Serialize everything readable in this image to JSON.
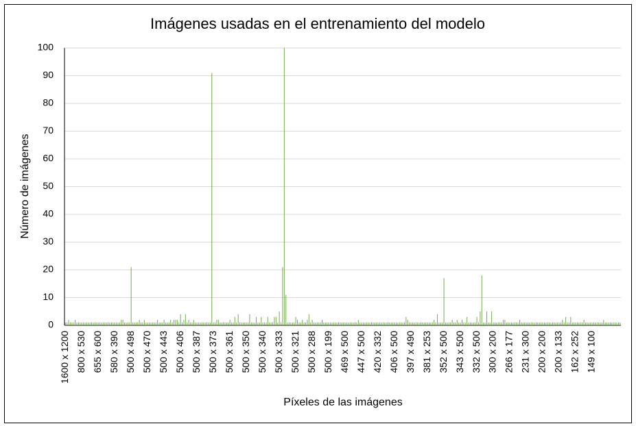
{
  "chart_data": {
    "type": "bar",
    "title": "Imágenes usadas en el entrenamiento del modelo",
    "x_label": "Píxeles de las imágenes",
    "y_label": "Número de imágenes",
    "color": "#70ad47",
    "grid": true,
    "ylim": [
      0,
      100
    ],
    "yticks": [
      0,
      10,
      20,
      30,
      40,
      50,
      60,
      70,
      80,
      90,
      100
    ],
    "categories": [
      "1600 x 1200",
      null,
      null,
      null,
      null,
      null,
      null,
      null,
      null,
      null,
      "800 x 530",
      null,
      null,
      null,
      null,
      null,
      null,
      null,
      null,
      null,
      "655 x 600",
      null,
      null,
      null,
      null,
      null,
      null,
      null,
      null,
      null,
      "580 x 390",
      null,
      null,
      null,
      null,
      null,
      null,
      null,
      null,
      null,
      "500 x 498",
      null,
      null,
      null,
      null,
      null,
      null,
      null,
      null,
      null,
      "500 x 470",
      null,
      null,
      null,
      null,
      null,
      null,
      null,
      null,
      null,
      "500 x 443",
      null,
      null,
      null,
      null,
      null,
      null,
      null,
      null,
      null,
      "500 x 406",
      null,
      null,
      null,
      null,
      null,
      null,
      null,
      null,
      null,
      "500 x 387",
      null,
      null,
      null,
      null,
      null,
      null,
      null,
      null,
      null,
      "500 x 373",
      null,
      null,
      null,
      null,
      null,
      null,
      null,
      null,
      null,
      "500 x 361",
      null,
      null,
      null,
      null,
      null,
      null,
      null,
      null,
      null,
      "500 x 350",
      null,
      null,
      null,
      null,
      null,
      null,
      null,
      null,
      null,
      "500 x 340",
      null,
      null,
      null,
      null,
      null,
      null,
      null,
      null,
      null,
      "500 x 333",
      null,
      null,
      null,
      null,
      null,
      null,
      null,
      null,
      null,
      "500 x 321",
      null,
      null,
      null,
      null,
      null,
      null,
      null,
      null,
      null,
      "500 x 288",
      null,
      null,
      null,
      null,
      null,
      null,
      null,
      null,
      null,
      "500 x 199",
      null,
      null,
      null,
      null,
      null,
      null,
      null,
      null,
      null,
      "469 x 500",
      null,
      null,
      null,
      null,
      null,
      null,
      null,
      null,
      null,
      "447 x 500",
      null,
      null,
      null,
      null,
      null,
      null,
      null,
      null,
      null,
      "420 x 332",
      null,
      null,
      null,
      null,
      null,
      null,
      null,
      null,
      null,
      "406 x 500",
      null,
      null,
      null,
      null,
      null,
      null,
      null,
      null,
      null,
      "397 x 490",
      null,
      null,
      null,
      null,
      null,
      null,
      null,
      null,
      null,
      "381 x 253",
      null,
      null,
      null,
      null,
      null,
      null,
      null,
      null,
      null,
      "352 x 500",
      null,
      null,
      null,
      null,
      null,
      null,
      null,
      null,
      null,
      "343 x 500",
      null,
      null,
      null,
      null,
      null,
      null,
      null,
      null,
      null,
      "332 x 500",
      null,
      null,
      null,
      null,
      null,
      null,
      null,
      null,
      null,
      "300 x 200",
      null,
      null,
      null,
      null,
      null,
      null,
      null,
      null,
      null,
      "266 x 177",
      null,
      null,
      null,
      null,
      null,
      null,
      null,
      null,
      null,
      "231 x 300",
      null,
      null,
      null,
      null,
      null,
      null,
      null,
      null,
      null,
      "200 x 200",
      null,
      null,
      null,
      null,
      null,
      null,
      null,
      null,
      null,
      "200 x 133",
      null,
      null,
      null,
      null,
      null,
      null,
      null,
      null,
      null,
      "162 x 252",
      null,
      null,
      null,
      null,
      null,
      null,
      null,
      null,
      null,
      "149 x 100",
      null,
      null,
      null,
      null,
      null,
      null,
      null,
      null,
      null,
      null,
      null,
      null,
      null,
      null,
      null,
      null,
      null
    ],
    "values": [
      1,
      1,
      2,
      1,
      1,
      1,
      2,
      1,
      1,
      1,
      1,
      1,
      1,
      1,
      1,
      1,
      1,
      1,
      1,
      1,
      1,
      1,
      1,
      1,
      1,
      1,
      1,
      1,
      1,
      1,
      1,
      1,
      1,
      1,
      2,
      2,
      1,
      1,
      1,
      1,
      21,
      1,
      1,
      1,
      1,
      2,
      1,
      1,
      2,
      1,
      1,
      1,
      1,
      1,
      1,
      1,
      2,
      1,
      1,
      1,
      2,
      1,
      1,
      1,
      2,
      1,
      2,
      2,
      2,
      1,
      4,
      1,
      2,
      4,
      1,
      2,
      1,
      1,
      2,
      1,
      1,
      1,
      1,
      1,
      1,
      1,
      1,
      1,
      1,
      91,
      1,
      1,
      2,
      2,
      1,
      1,
      1,
      1,
      1,
      1,
      2,
      1,
      1,
      3,
      1,
      4,
      1,
      1,
      1,
      1,
      1,
      1,
      4,
      1,
      1,
      1,
      3,
      1,
      1,
      3,
      1,
      1,
      1,
      3,
      1,
      1,
      1,
      3,
      3,
      1,
      5,
      1,
      21,
      100,
      11,
      1,
      1,
      1,
      1,
      1,
      3,
      2,
      1,
      1,
      2,
      1,
      1,
      2,
      4,
      1,
      2,
      1,
      1,
      1,
      1,
      1,
      2,
      1,
      1,
      1,
      1,
      1,
      1,
      1,
      1,
      1,
      1,
      1,
      1,
      1,
      1,
      1,
      1,
      1,
      1,
      1,
      1,
      1,
      2,
      1,
      1,
      1,
      1,
      1,
      1,
      1,
      1,
      1,
      1,
      1,
      1,
      1,
      1,
      1,
      1,
      1,
      1,
      1,
      1,
      1,
      1,
      1,
      1,
      1,
      1,
      1,
      1,
      3,
      2,
      1,
      1,
      1,
      1,
      1,
      1,
      1,
      1,
      1,
      1,
      1,
      1,
      1,
      1,
      1,
      2,
      1,
      4,
      1,
      1,
      1,
      17,
      1,
      1,
      1,
      1,
      2,
      1,
      1,
      2,
      1,
      1,
      2,
      1,
      1,
      3,
      1,
      1,
      1,
      1,
      1,
      3,
      1,
      5,
      18,
      1,
      1,
      5,
      1,
      1,
      5,
      1,
      1,
      1,
      1,
      1,
      1,
      2,
      2,
      1,
      1,
      1,
      1,
      1,
      1,
      1,
      1,
      2,
      1,
      1,
      1,
      1,
      1,
      1,
      1,
      1,
      1,
      1,
      1,
      1,
      1,
      1,
      1,
      1,
      1,
      1,
      1,
      1,
      1,
      1,
      1,
      1,
      1,
      2,
      1,
      3,
      1,
      1,
      3,
      1,
      1,
      1,
      1,
      1,
      1,
      1,
      2,
      1,
      1,
      1,
      1,
      1,
      1,
      1,
      1,
      1,
      1,
      1,
      2,
      1,
      1,
      1,
      1,
      1,
      1,
      1,
      1,
      1,
      1
    ]
  }
}
